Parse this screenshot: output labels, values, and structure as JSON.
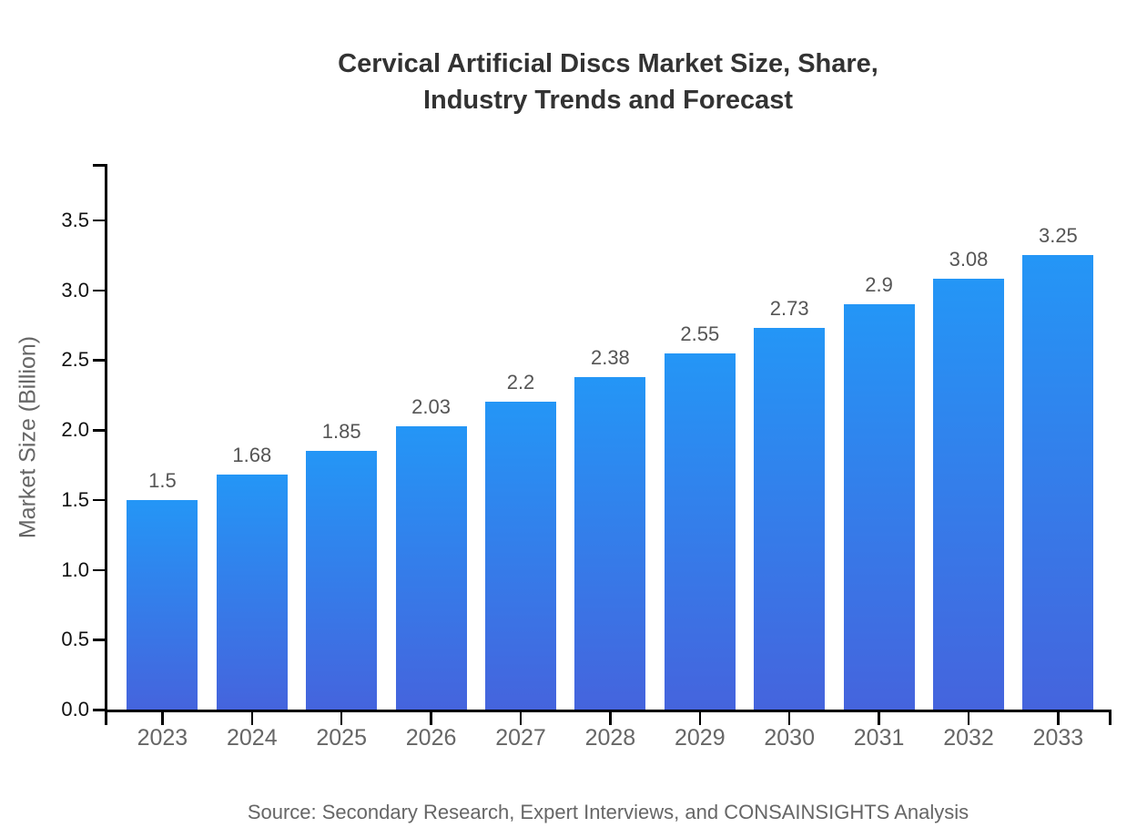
{
  "title": {
    "line1": "Cervical Artificial Discs Market Size, Share,",
    "line2": "Industry Trends and Forecast"
  },
  "y_axis": {
    "label": "Market Size (Billion)",
    "tick_labels": [
      "0.0",
      "0.5",
      "1.0",
      "1.5",
      "2.0",
      "2.5",
      "3.0",
      "3.5"
    ]
  },
  "footer": {
    "source": "Source: Secondary Research, Expert Interviews, and CONSAINSIGHTS Analysis"
  },
  "colors": {
    "bar_top": "#2496f6",
    "bar_bottom": "#4564dd",
    "axis": "#000000",
    "title_text": "#333333",
    "y_tick_text": "#111111",
    "x_tick_text": "#666666",
    "value_text": "#555555",
    "muted_text": "#666666",
    "background": "#ffffff"
  },
  "chart_data": {
    "type": "bar",
    "title": "Cervical Artificial Discs Market Size, Share, Industry Trends and Forecast",
    "categories": [
      "2023",
      "2024",
      "2025",
      "2026",
      "2027",
      "2028",
      "2029",
      "2030",
      "2031",
      "2032",
      "2033"
    ],
    "values": [
      1.5,
      1.68,
      1.85,
      2.03,
      2.2,
      2.38,
      2.55,
      2.73,
      2.9,
      3.08,
      3.25
    ],
    "value_labels": [
      "1.5",
      "1.68",
      "1.85",
      "2.03",
      "2.2",
      "2.38",
      "2.55",
      "2.73",
      "2.9",
      "3.08",
      "3.25"
    ],
    "xlabel": "",
    "ylabel": "Market Size (Billion)",
    "ylim": [
      0,
      3.9
    ],
    "yticks": [
      0.0,
      0.5,
      1.0,
      1.5,
      2.0,
      2.5,
      3.0,
      3.5
    ],
    "grid": false,
    "legend": false,
    "bar_gradient": [
      "#2496f6",
      "#4564dd"
    ]
  }
}
